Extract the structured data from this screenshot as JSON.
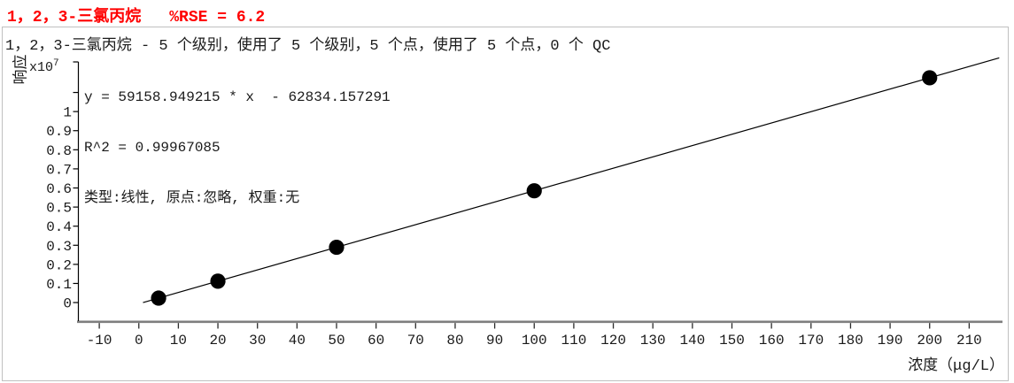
{
  "header": {
    "title_compound": "1，2，3-三氯丙烷",
    "title_rse": "%RSE = 6.2",
    "subtitle": "1，2，3-三氯丙烷 - 5 个级别，使用了 5 个级别，5 个点，使用了 5 个点，0 个 QC"
  },
  "annotation": {
    "equation": "y = 59158.949215 * x  - 62834.157291",
    "r_squared": "R^2 = 0.99967085",
    "curve_info": "类型:线性, 原点:忽略, 权重:无"
  },
  "axes": {
    "y_label": "响应",
    "y_scale_base": "x10",
    "y_scale_exp": "7",
    "x_label": "浓度（μg/L）"
  },
  "colors": {
    "title_red": "#ff0000",
    "frame_border": "#c0c0c0",
    "x_axis_gray": "#7e7e7e",
    "ink": "#000000"
  },
  "chart_data": {
    "type": "scatter",
    "title": "1，2，3-三氯丙烷  %RSE = 6.2",
    "xlabel": "浓度（μg/L）",
    "ylabel": "响应",
    "y_scale": "x10^7",
    "points": {
      "x": [
        5,
        20,
        50,
        100,
        200
      ],
      "y_x1e7": [
        0.0233,
        0.112,
        0.2895,
        0.5853,
        1.1769
      ]
    },
    "fit": {
      "slope": 59158.949215,
      "intercept": -62834.157291,
      "r2": 0.99967085,
      "rse_pct": 6.2,
      "type": "线性",
      "origin": "忽略",
      "weight": "无",
      "levels": 5,
      "levels_used": 5,
      "points": 5,
      "points_used": 5,
      "qc_count": 0
    },
    "x_ticks": [
      -10,
      0,
      10,
      20,
      30,
      40,
      50,
      60,
      70,
      80,
      90,
      100,
      110,
      120,
      130,
      140,
      150,
      160,
      170,
      180,
      190,
      200,
      210
    ],
    "y_ticks": [
      0,
      0.1,
      0.2,
      0.3,
      0.4,
      0.5,
      0.6,
      0.7,
      0.8,
      0.9,
      1
    ],
    "y_tick_labels": [
      "0",
      "0.1",
      "0.2",
      "0.3",
      "0.4",
      "0.5",
      "0.6",
      "0.7",
      "0.8",
      "0.9",
      "1"
    ],
    "y_unlabeled_ticks": [
      1.1
    ],
    "xlim": [
      -15.4,
      218.2
    ],
    "ylim_x1e7": [
      -0.097,
      1.26
    ],
    "line_x_range": [
      1.06,
      217.6
    ],
    "grid": false,
    "legend": "none",
    "point_color": "#000000",
    "line_color": "#000000"
  }
}
